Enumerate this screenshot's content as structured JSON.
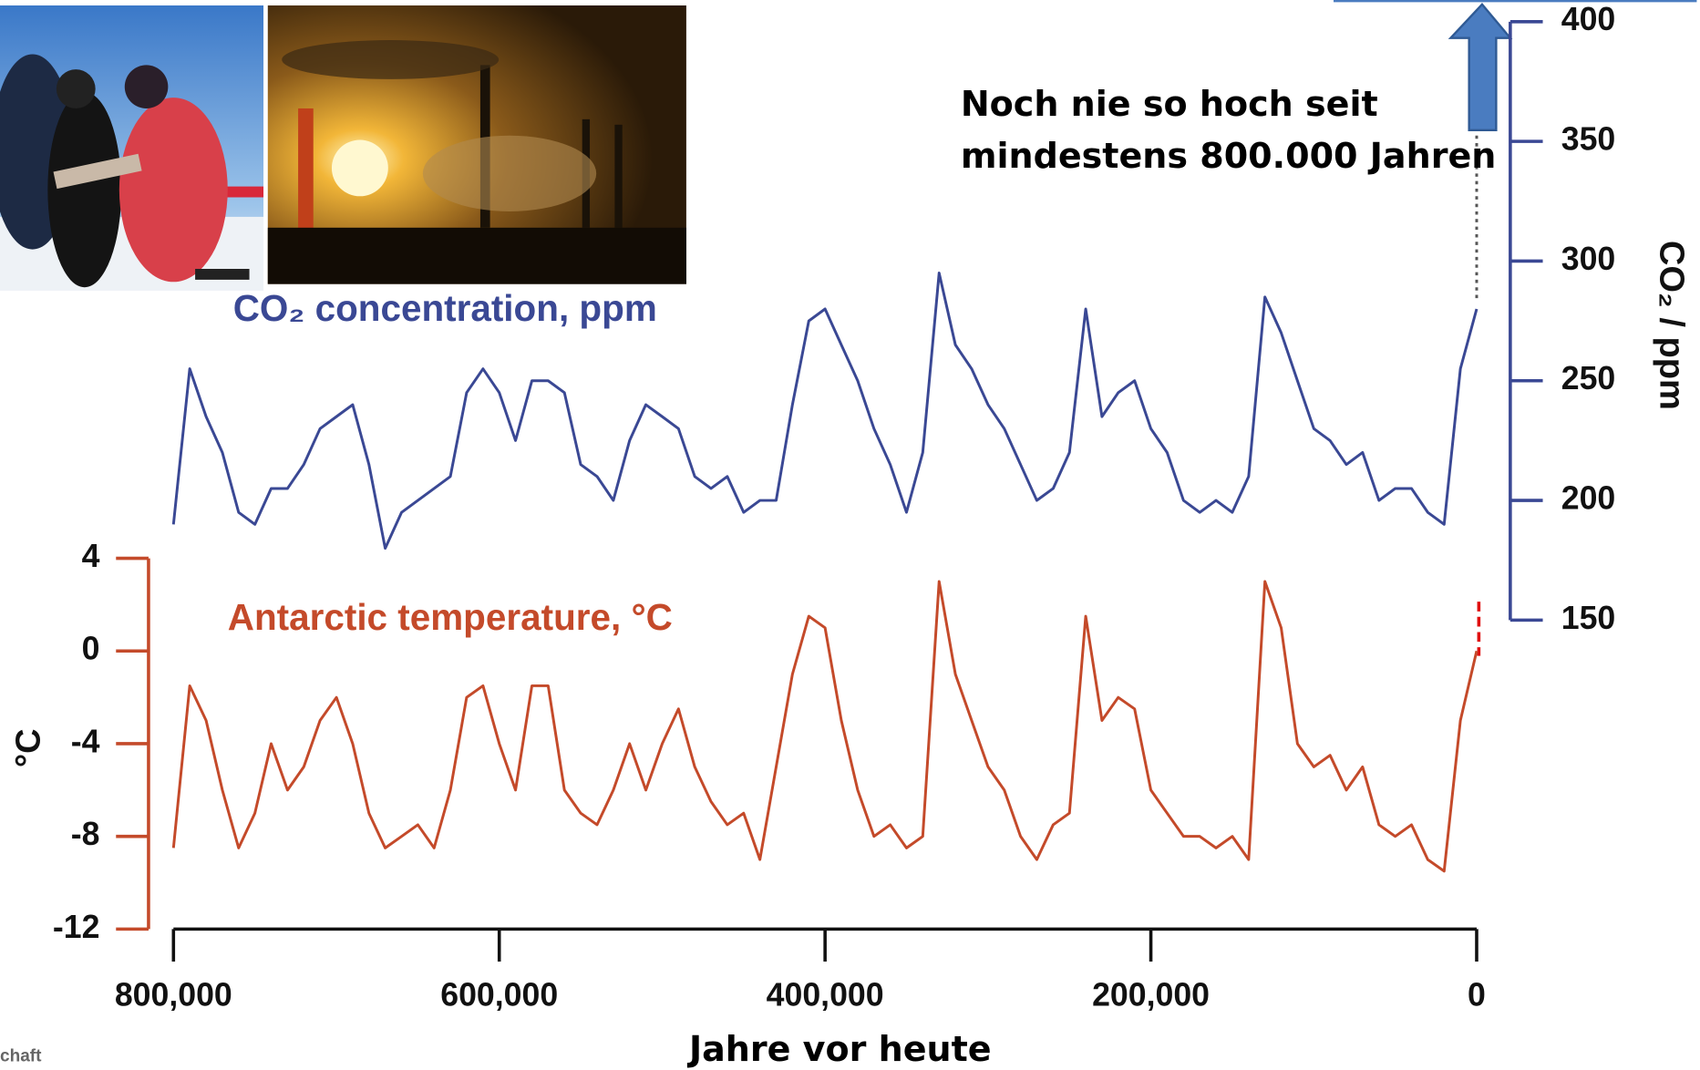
{
  "chart_data": {
    "type": "line",
    "x": [
      800000,
      790000,
      780000,
      770000,
      760000,
      750000,
      740000,
      730000,
      720000,
      710000,
      700000,
      690000,
      680000,
      670000,
      660000,
      650000,
      640000,
      630000,
      620000,
      610000,
      600000,
      590000,
      580000,
      570000,
      560000,
      550000,
      540000,
      530000,
      520000,
      510000,
      500000,
      490000,
      480000,
      470000,
      460000,
      450000,
      440000,
      430000,
      420000,
      410000,
      400000,
      390000,
      380000,
      370000,
      360000,
      350000,
      340000,
      330000,
      320000,
      310000,
      300000,
      290000,
      280000,
      270000,
      260000,
      250000,
      240000,
      230000,
      220000,
      210000,
      200000,
      190000,
      180000,
      170000,
      160000,
      150000,
      140000,
      130000,
      120000,
      110000,
      100000,
      90000,
      80000,
      70000,
      60000,
      50000,
      40000,
      30000,
      20000,
      10000,
      0
    ],
    "series": [
      {
        "name": "CO₂ concentration, ppm",
        "color": "#3a4894",
        "axis": "y2",
        "values": [
          190,
          255,
          235,
          220,
          195,
          190,
          205,
          205,
          215,
          230,
          235,
          240,
          215,
          180,
          195,
          200,
          205,
          210,
          245,
          255,
          245,
          225,
          250,
          250,
          245,
          215,
          210,
          200,
          225,
          240,
          235,
          230,
          210,
          205,
          210,
          195,
          200,
          200,
          240,
          275,
          280,
          265,
          250,
          230,
          215,
          195,
          220,
          295,
          265,
          255,
          240,
          230,
          215,
          200,
          205,
          220,
          280,
          235,
          245,
          250,
          230,
          220,
          200,
          195,
          200,
          195,
          210,
          285,
          270,
          250,
          230,
          225,
          215,
          220,
          200,
          205,
          205,
          195,
          190,
          255,
          280
        ]
      },
      {
        "name": "Antarctic temperature, °C",
        "color": "#c44a2a",
        "values": [
          -8.5,
          -1.5,
          -3,
          -6,
          -8.5,
          -7,
          -4,
          -6,
          -5,
          -3,
          -2,
          -4,
          -7,
          -8.5,
          -8,
          -7.5,
          -8.5,
          -6,
          -2,
          -1.5,
          -4,
          -6,
          -1.5,
          -1.5,
          -6,
          -7,
          -7.5,
          -6,
          -4,
          -6,
          -4,
          -2.5,
          -5,
          -6.5,
          -7.5,
          -7,
          -9,
          -5,
          -1,
          1.5,
          1,
          -3,
          -6,
          -8,
          -7.5,
          -8.5,
          -8,
          3,
          -1,
          -3,
          -5,
          -6,
          -8,
          -9,
          -7.5,
          -7,
          1.5,
          -3,
          -2,
          -2.5,
          -6,
          -7,
          -8,
          -8,
          -8.5,
          -8,
          -9,
          3,
          1,
          -4,
          -5,
          -4.5,
          -6,
          -5,
          -7.5,
          -8,
          -7.5,
          -9,
          -9.5,
          -3,
          0
        ]
      }
    ],
    "xlim": [
      800000,
      0
    ],
    "xticks": [
      {
        "value": 800000,
        "label": "800,000"
      },
      {
        "value": 600000,
        "label": "600,000"
      },
      {
        "value": 400000,
        "label": "400,000"
      },
      {
        "value": 200000,
        "label": "200,000"
      },
      0
    ],
    "ylim": [
      -12,
      4
    ],
    "yticks": [
      -12,
      -8,
      -4,
      0,
      4
    ],
    "y2lim": [
      150,
      400
    ],
    "y2ticks": [
      150,
      200,
      250,
      300,
      350,
      400
    ],
    "xlabel": "Jahre vor heute",
    "ylabel": "°C",
    "y2label": "CO₂ / ppm",
    "annotation": [
      "Noch nie so hoch seit",
      "mindestens 800.000 Jahren"
    ]
  },
  "footer": "chaft"
}
